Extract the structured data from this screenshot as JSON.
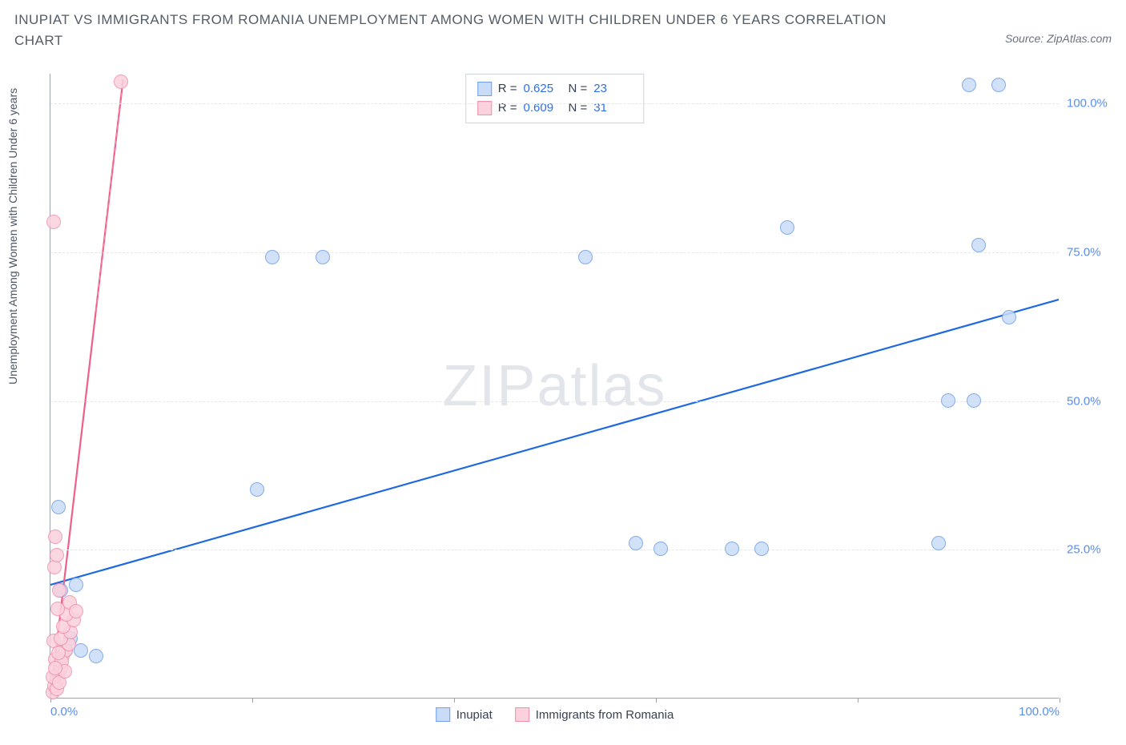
{
  "title": "INUPIAT VS IMMIGRANTS FROM ROMANIA UNEMPLOYMENT AMONG WOMEN WITH CHILDREN UNDER 6 YEARS CORRELATION CHART",
  "source": "Source: ZipAtlas.com",
  "y_axis_label": "Unemployment Among Women with Children Under 6 years",
  "watermark_a": "ZIP",
  "watermark_b": "atlas",
  "chart": {
    "type": "scatter",
    "xlim": [
      0,
      100
    ],
    "ylim": [
      0,
      105
    ],
    "x_ticks": [
      0,
      20,
      40,
      60,
      80,
      100
    ],
    "x_tick_labels": {
      "0": "0.0%",
      "100": "100.0%"
    },
    "y_grid": [
      25,
      50,
      75,
      100
    ],
    "y_tick_labels": {
      "25": "25.0%",
      "50": "50.0%",
      "75": "75.0%",
      "100": "100.0%"
    },
    "background_color": "#ffffff",
    "grid_color": "#e5e7eb",
    "axis_color": "#9ca3af",
    "tick_label_color": "#5b8def",
    "marker_radius": 9,
    "marker_stroke_width": 1,
    "series": [
      {
        "name": "Inupiat",
        "color_fill": "#c9dcf7",
        "color_stroke": "#6f9fe8",
        "stats": {
          "R": "0.625",
          "N": "23"
        },
        "trend": {
          "x1": 0,
          "y1": 19,
          "x2": 100,
          "y2": 67,
          "dash": false,
          "width": 2.2,
          "color": "#1f69e0"
        },
        "points": [
          [
            1.0,
            18.0
          ],
          [
            2.5,
            19.0
          ],
          [
            0.8,
            32.0
          ],
          [
            3.0,
            8.0
          ],
          [
            4.5,
            7.0
          ],
          [
            1.5,
            8.0
          ],
          [
            20.5,
            35.0
          ],
          [
            22.0,
            74.0
          ],
          [
            27.0,
            74.0
          ],
          [
            53.0,
            74.0
          ],
          [
            58.0,
            26.0
          ],
          [
            60.5,
            25.0
          ],
          [
            67.5,
            25.0
          ],
          [
            70.5,
            25.0
          ],
          [
            73.0,
            79.0
          ],
          [
            88.0,
            26.0
          ],
          [
            89.0,
            50.0
          ],
          [
            91.5,
            50.0
          ],
          [
            91.0,
            103.0
          ],
          [
            94.0,
            103.0
          ],
          [
            92.0,
            76.0
          ],
          [
            95.0,
            64.0
          ],
          [
            2.0,
            10.0
          ]
        ]
      },
      {
        "name": "Immigrants from Romania",
        "color_fill": "#fbd1dd",
        "color_stroke": "#ef8fab",
        "stats": {
          "R": "0.609",
          "N": "31"
        },
        "trend": {
          "x1": 0,
          "y1": 0,
          "x2": 7.2,
          "y2": 104,
          "dash": false,
          "width": 2.2,
          "color": "#ef5f8a"
        },
        "trend_ext": {
          "x1": 4.5,
          "y1": 65,
          "x2": 7.2,
          "y2": 104,
          "dash": true,
          "width": 1,
          "color": "#ef8fab"
        },
        "points": [
          [
            0.2,
            1.0
          ],
          [
            0.4,
            2.0
          ],
          [
            0.6,
            3.0
          ],
          [
            0.8,
            4.0
          ],
          [
            1.0,
            5.0
          ],
          [
            0.5,
            6.5
          ],
          [
            1.2,
            7.0
          ],
          [
            1.5,
            8.0
          ],
          [
            1.8,
            9.0
          ],
          [
            0.3,
            9.5
          ],
          [
            1.0,
            10.0
          ],
          [
            2.0,
            11.0
          ],
          [
            1.3,
            12.0
          ],
          [
            2.3,
            13.0
          ],
          [
            1.6,
            14.0
          ],
          [
            0.7,
            15.0
          ],
          [
            1.9,
            16.0
          ],
          [
            0.9,
            18.0
          ],
          [
            2.5,
            14.5
          ],
          [
            0.4,
            22.0
          ],
          [
            0.6,
            24.0
          ],
          [
            0.5,
            27.0
          ],
          [
            0.3,
            80.0
          ],
          [
            7.0,
            103.5
          ],
          [
            0.6,
            1.5
          ],
          [
            0.2,
            3.5
          ],
          [
            1.1,
            6.0
          ],
          [
            0.9,
            2.5
          ],
          [
            1.4,
            4.5
          ],
          [
            0.8,
            7.5
          ],
          [
            0.5,
            5.0
          ]
        ]
      }
    ]
  },
  "stats_labels": {
    "R": "R =",
    "N": "N ="
  },
  "legend": {
    "items": [
      "Inupiat",
      "Immigrants from Romania"
    ]
  }
}
